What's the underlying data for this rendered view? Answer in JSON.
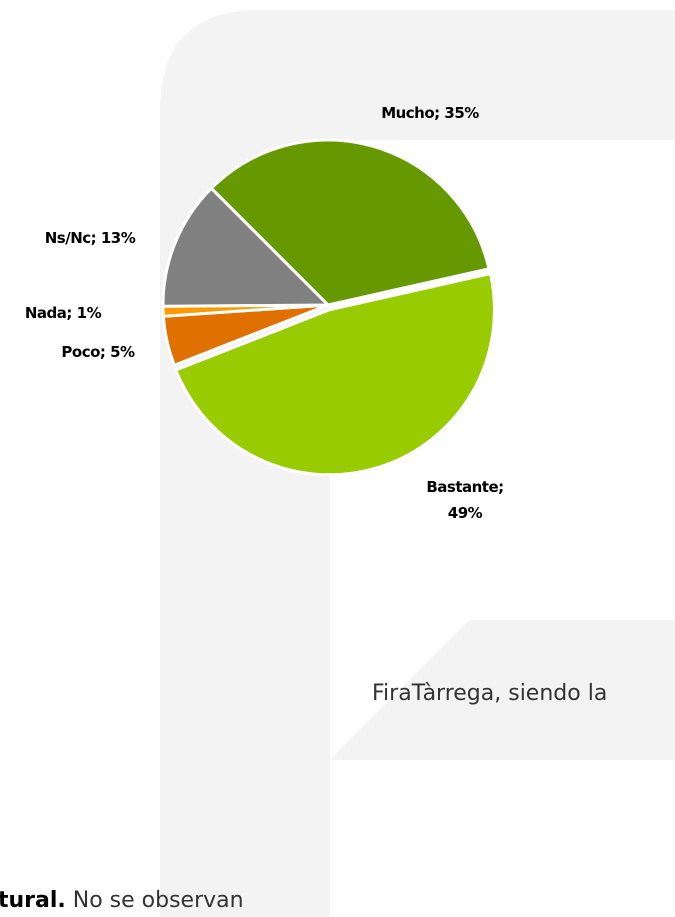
{
  "chart_data": {
    "type": "pie",
    "labels": [
      "Mucho; 35%",
      "Bastante; 49%",
      "Poco; 5%",
      "Nada; 1%",
      "Ns/Nc; 13%"
    ],
    "values": [
      35,
      49,
      5,
      1,
      13
    ],
    "colors": [
      "#669900",
      "#99cc00",
      "#e07000",
      "#ff9900",
      "#808080"
    ]
  },
  "text": {
    "line1": "FiraTàrrega,  siendo  la",
    "line2_bold": "tural.",
    "line2_rest": " No  se  observan"
  }
}
